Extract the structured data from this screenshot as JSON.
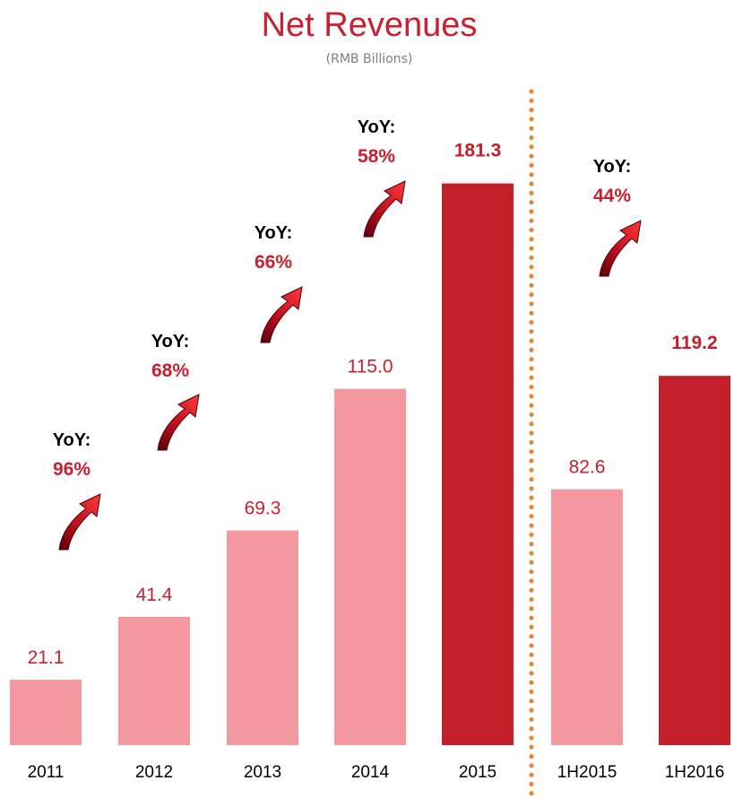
{
  "chart_data": {
    "type": "bar",
    "title": "Net Revenues",
    "subtitle": "(RMB Billions)",
    "categories": [
      "2011",
      "2012",
      "2013",
      "2014",
      "2015",
      "1H2015",
      "1H2016"
    ],
    "values": [
      21.1,
      41.4,
      69.3,
      115.0,
      181.3,
      82.6,
      119.2
    ],
    "value_labels": [
      "21.1",
      "41.4",
      "69.3",
      "115.0",
      "181.3",
      "82.6",
      "119.2"
    ],
    "highlighted": [
      false,
      false,
      false,
      false,
      true,
      false,
      true
    ],
    "growth_annotations": [
      {
        "label": "YoY:",
        "value": "96%"
      },
      {
        "label": "YoY:",
        "value": "68%"
      },
      {
        "label": "YoY:",
        "value": "66%"
      },
      {
        "label": "YoY:",
        "value": "58%"
      },
      {
        "label": "YoY:",
        "value": "44%"
      }
    ],
    "divider": "dotted vertical line between 2015 and 1H2015",
    "colors": {
      "title": "#c8202f",
      "subtitle": "#7f7f7f",
      "bar_light": "#f4989f",
      "bar_dark": "#c41e2a",
      "label_light": "#c8202f",
      "label_dark": "#c41e2a",
      "yoy_label": "#000000",
      "yoy_value": "#c8202f",
      "divider": "#e8852b",
      "axis_text": "#000000"
    }
  }
}
